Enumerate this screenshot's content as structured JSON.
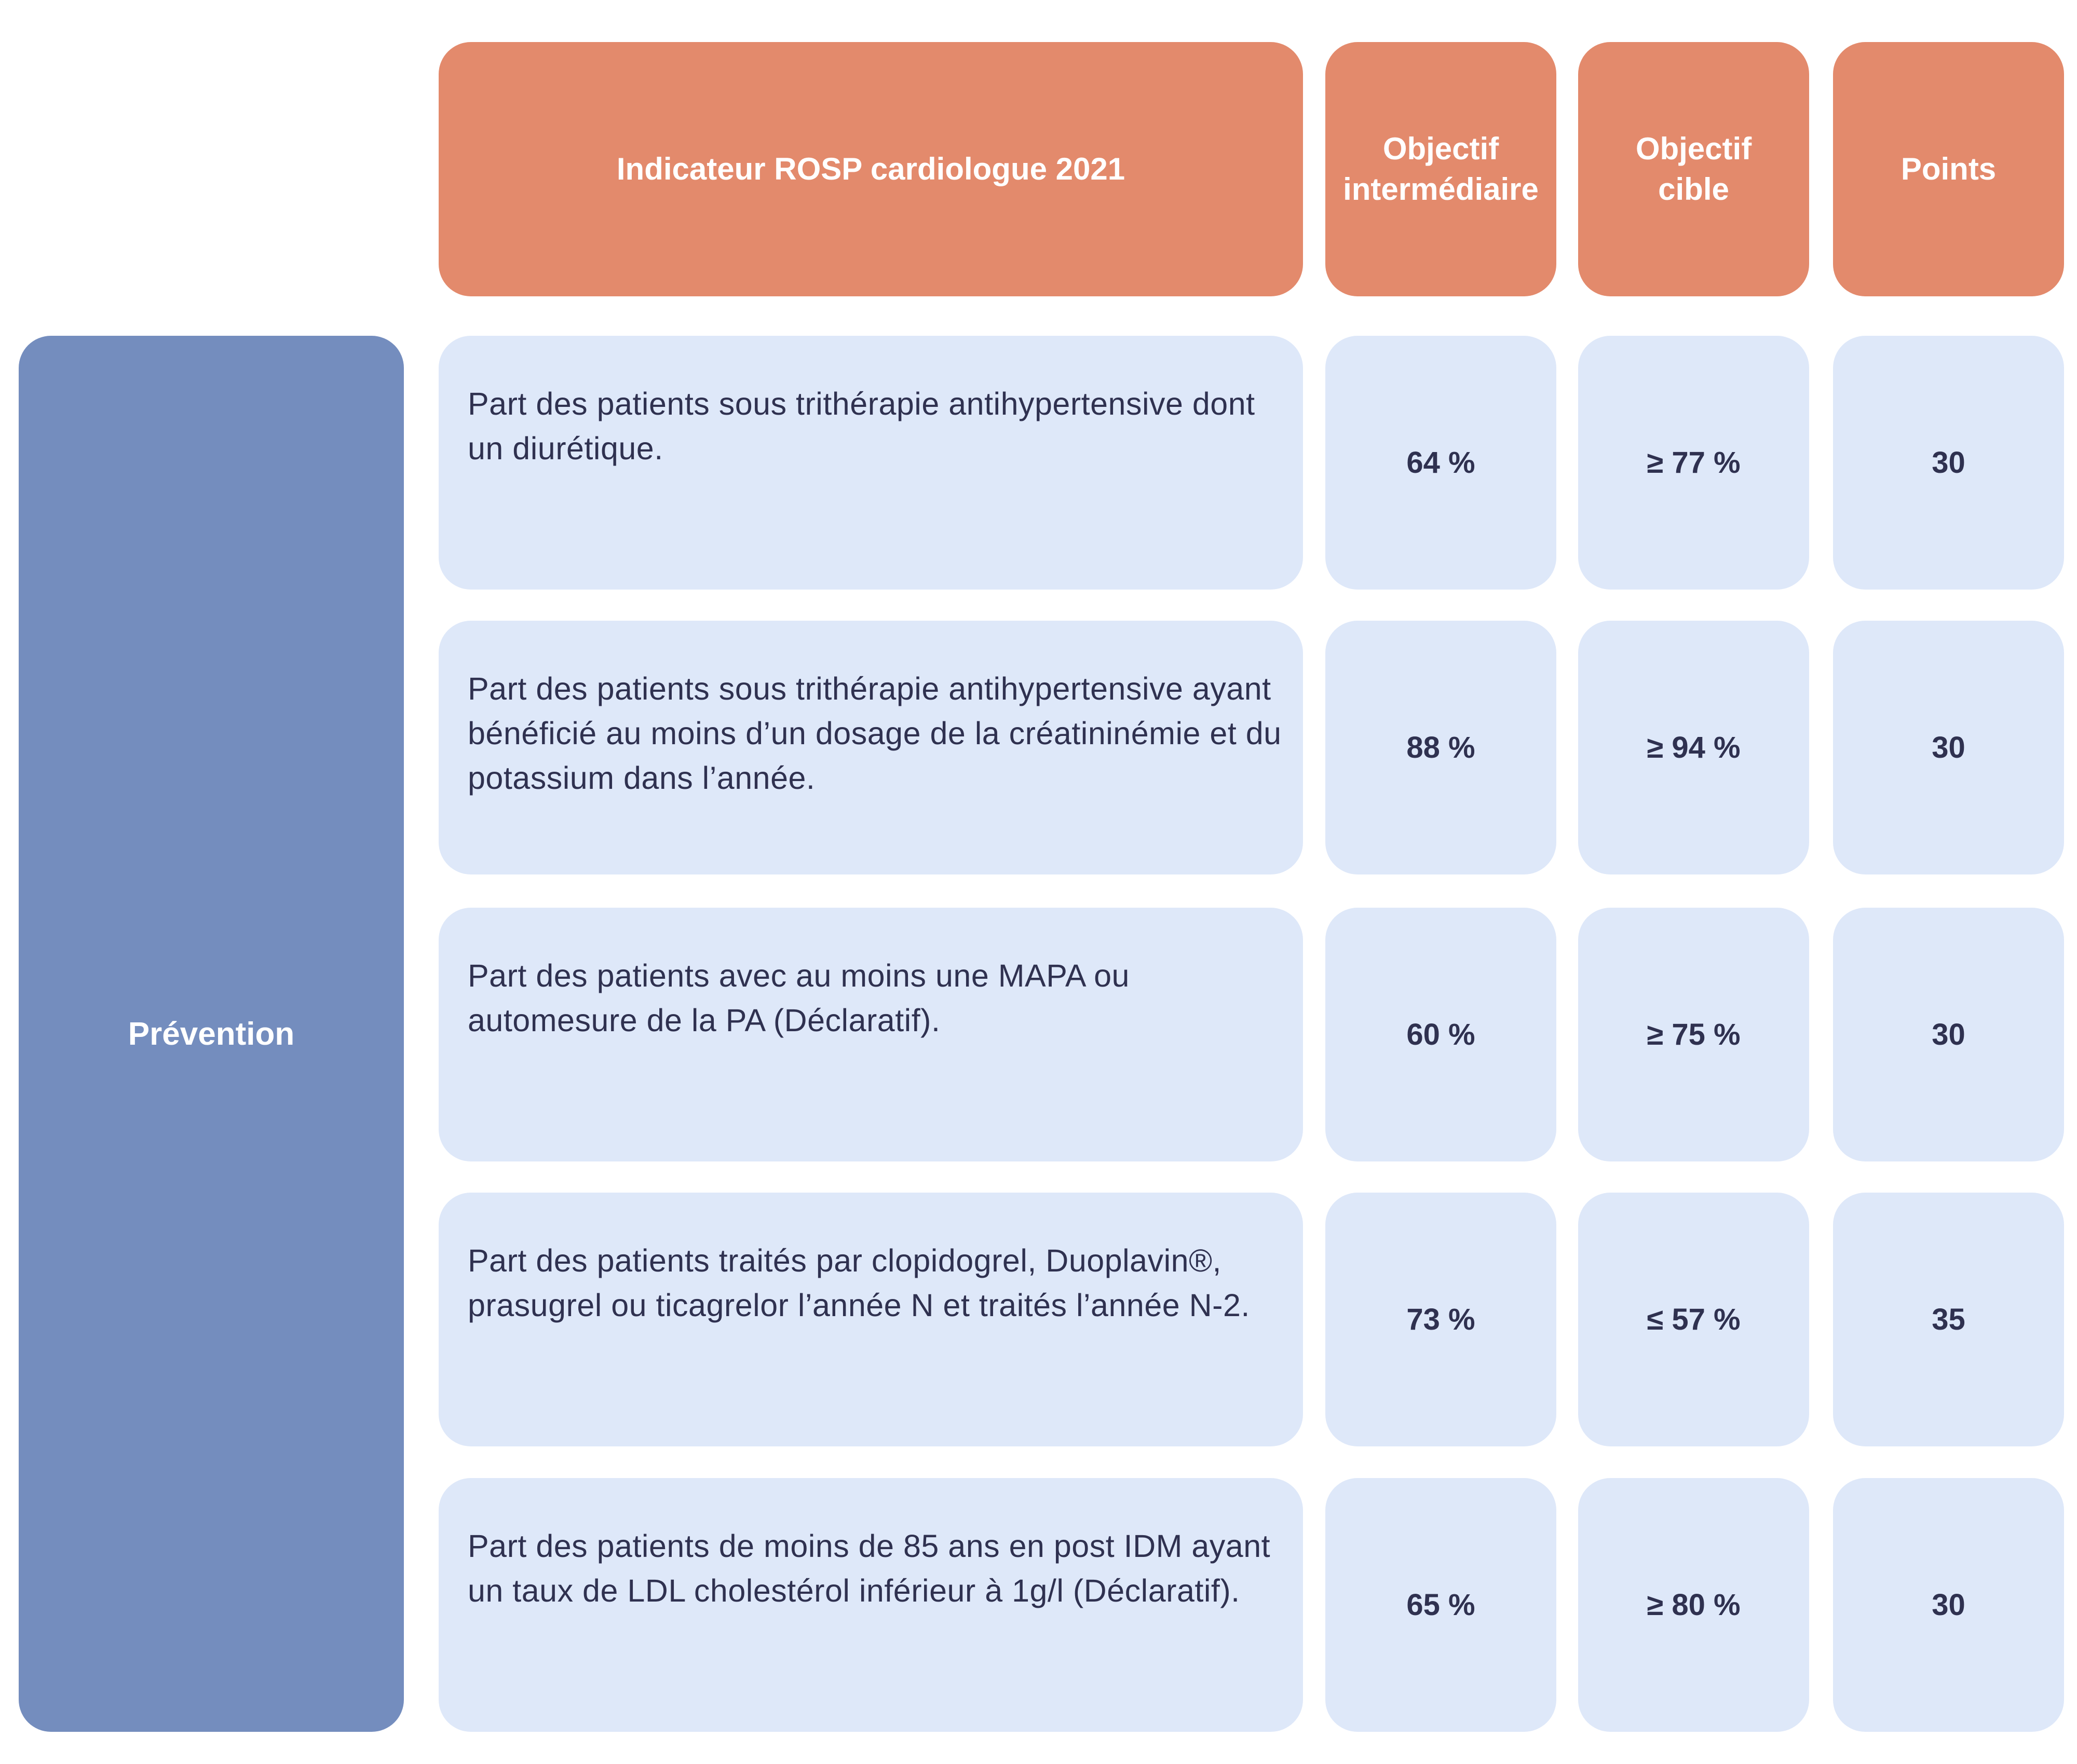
{
  "header": {
    "indicator": "Indicateur ROSP cardiologue 2021",
    "intermediate": "Objectif\nintermédiaire",
    "target": "Objectif\ncible",
    "points": "Points"
  },
  "category": "Prévention",
  "rows": [
    {
      "description": "Part des patients sous trithérapie antihypertensive dont un diurétique.",
      "intermediate": "64 %",
      "target": "≥ 77 %",
      "points": "30"
    },
    {
      "description": "Part des patients sous trithérapie antihypertensive ayant bénéficié au moins d’un dosage de la créatininémie et du potassium dans l’année.",
      "intermediate": "88 %",
      "target": "≥ 94 %",
      "points": "30"
    },
    {
      "description": "Part des patients avec au moins une MAPA ou automesure de la PA (Déclaratif).",
      "intermediate": "60 %",
      "target": "≥ 75 %",
      "points": "30"
    },
    {
      "description": "Part des patients traités par clopidogrel, Duoplavin®, prasugrel ou ticagrelor l’année N et traités l’année N-2.",
      "intermediate": "73 %",
      "target": "≤ 57 %",
      "points": "35"
    },
    {
      "description": "Part des patients de moins de 85 ans en post IDM ayant un taux de LDL cholestérol inférieur à 1g/l (Déclaratif).",
      "intermediate": "65 %",
      "target": "≥ 80 %",
      "points": "30"
    }
  ],
  "colors": {
    "header_bg": "#e38a6c",
    "category_bg": "#748dbe",
    "cell_bg": "#dee8f9",
    "text": "#2f3150"
  }
}
